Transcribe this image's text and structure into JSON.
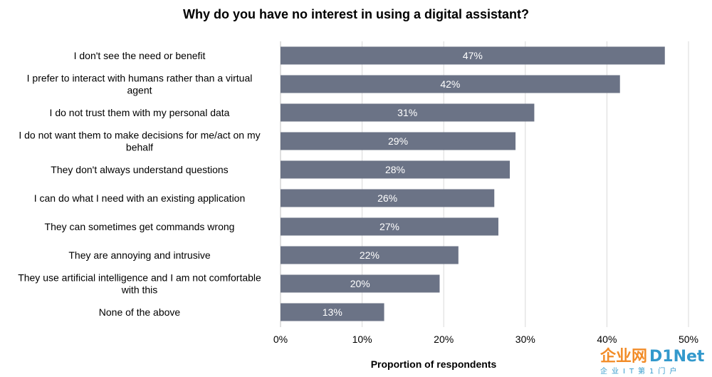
{
  "chart_data": {
    "type": "bar",
    "orientation": "horizontal",
    "title": "Why do you have no interest in using a digital assistant?",
    "xlabel": "Proportion of respondents",
    "ylabel": "",
    "xlim": [
      0,
      50
    ],
    "xticks": [
      "0%",
      "10%",
      "20%",
      "30%",
      "40%",
      "50%"
    ],
    "grid": "vertical",
    "bar_color": "#6b7386",
    "categories": [
      "I don't see the need or benefit",
      "I prefer to interact with humans rather than a virtual agent",
      "I do not trust them with my personal data",
      "I do not want them to make decisions for me/act on my behalf",
      "They don't always understand questions",
      "I can do what I need with an existing application",
      "They can sometimes get commands wrong",
      "They are annoying and intrusive",
      "They use artificial intelligence and I am not comfortable with this",
      "None of the above"
    ],
    "category_lines": [
      [
        "I don't see the need or benefit"
      ],
      [
        "I prefer to interact with humans rather than a virtual",
        "agent"
      ],
      [
        "I do not trust them with my personal data"
      ],
      [
        "I do not want them to make decisions for me/act on my",
        "behalf"
      ],
      [
        "They don't always understand questions"
      ],
      [
        "I can do what I need with an existing application"
      ],
      [
        "They can sometimes get commands wrong"
      ],
      [
        "They are annoying and intrusive"
      ],
      [
        "They use artificial intelligence and I am not comfortable",
        "with this"
      ],
      [
        "None of the above"
      ]
    ],
    "values": [
      47.1,
      41.6,
      31.1,
      28.8,
      28.1,
      26.2,
      26.7,
      21.8,
      19.5,
      12.7
    ],
    "data_labels": [
      "47%",
      "42%",
      "31%",
      "29%",
      "28%",
      "26%",
      "27%",
      "22%",
      "20%",
      "13%"
    ]
  },
  "watermark": {
    "brand_left": "企业网",
    "brand_right": "D1Net",
    "tagline": "企业IT第1门户",
    "color_left": "#f28c28",
    "color_right": "#3399cc"
  }
}
